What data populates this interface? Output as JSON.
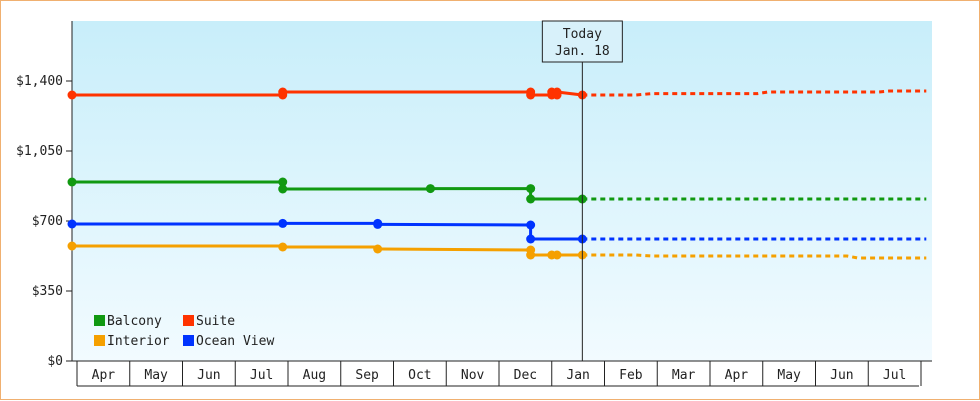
{
  "chart_data": {
    "type": "line",
    "x_axis": {
      "months": [
        "Apr",
        "May",
        "Jun",
        "Jul",
        "Aug",
        "Sep",
        "Oct",
        "Nov",
        "Dec",
        "Jan",
        "Feb",
        "Mar",
        "Apr",
        "May",
        "Jun",
        "Jul"
      ]
    },
    "y_axis": {
      "ylim": [
        0,
        1700
      ],
      "ticks": [
        0,
        350,
        700,
        1050,
        1400
      ],
      "tick_labels": [
        "$0",
        "$350",
        "$700",
        "$1,050",
        "$1,400"
      ]
    },
    "grid": false,
    "legend": {
      "placement": "bottom-left",
      "entries": [
        {
          "name": "Balcony",
          "color": "#119911"
        },
        {
          "name": "Suite",
          "color": "#ff3300"
        },
        {
          "name": "Interior",
          "color": "#f5a000"
        },
        {
          "name": "Ocean View",
          "color": "#0033ff"
        }
      ]
    },
    "today_marker": {
      "line1": "Today",
      "line2": "Jan. 18",
      "month_index": 9.58
    },
    "series": [
      {
        "name": "Suite",
        "color": "#ff3300",
        "history": [
          [
            0,
            1330
          ],
          [
            3.9,
            1330
          ],
          [
            3.9,
            1345
          ],
          [
            8.6,
            1345
          ],
          [
            8.6,
            1330
          ],
          [
            9.0,
            1330
          ],
          [
            9.0,
            1345
          ],
          [
            9.05,
            1330
          ],
          [
            9.1,
            1345
          ],
          [
            9.58,
            1330
          ]
        ],
        "forecast": [
          [
            9.58,
            1330
          ],
          [
            10.6,
            1330
          ],
          [
            10.9,
            1337
          ],
          [
            12.9,
            1337
          ],
          [
            13.1,
            1345
          ],
          [
            15.2,
            1345
          ],
          [
            15.4,
            1350
          ],
          [
            16.1,
            1350
          ]
        ]
      },
      {
        "name": "Balcony",
        "color": "#119911",
        "history": [
          [
            0,
            895
          ],
          [
            3.9,
            895
          ],
          [
            3.9,
            860
          ],
          [
            6.7,
            860
          ],
          [
            6.7,
            862
          ],
          [
            8.6,
            862
          ],
          [
            8.6,
            810
          ],
          [
            9.58,
            810
          ]
        ],
        "forecast": [
          [
            9.58,
            810
          ],
          [
            16.1,
            810
          ]
        ]
      },
      {
        "name": "Ocean View",
        "color": "#0033ff",
        "history": [
          [
            0,
            685
          ],
          [
            3.9,
            685
          ],
          [
            3.9,
            688
          ],
          [
            5.7,
            688
          ],
          [
            5.7,
            683
          ],
          [
            8.6,
            680
          ],
          [
            8.6,
            610
          ],
          [
            9.58,
            610
          ]
        ],
        "forecast": [
          [
            9.58,
            610
          ],
          [
            16.1,
            610
          ]
        ]
      },
      {
        "name": "Interior",
        "color": "#f5a000",
        "history": [
          [
            0,
            575
          ],
          [
            3.9,
            575
          ],
          [
            3.9,
            570
          ],
          [
            5.7,
            570
          ],
          [
            5.7,
            560
          ],
          [
            8.6,
            555
          ],
          [
            8.6,
            530
          ],
          [
            9.0,
            530
          ],
          [
            9.05,
            535
          ],
          [
            9.1,
            530
          ],
          [
            9.58,
            530
          ]
        ],
        "forecast": [
          [
            9.58,
            530
          ],
          [
            10.6,
            530
          ],
          [
            10.9,
            525
          ],
          [
            14.6,
            525
          ],
          [
            14.8,
            515
          ],
          [
            16.1,
            515
          ]
        ]
      }
    ],
    "markers": [
      {
        "series": "Suite",
        "points": [
          [
            0,
            1330
          ],
          [
            3.9,
            1330
          ],
          [
            3.9,
            1345
          ],
          [
            8.6,
            1345
          ],
          [
            8.6,
            1330
          ],
          [
            9.0,
            1330
          ],
          [
            9.0,
            1345
          ],
          [
            9.1,
            1345
          ],
          [
            9.1,
            1330
          ],
          [
            9.58,
            1330
          ]
        ]
      },
      {
        "series": "Balcony",
        "points": [
          [
            0,
            895
          ],
          [
            3.9,
            895
          ],
          [
            3.9,
            860
          ],
          [
            6.7,
            862
          ],
          [
            8.6,
            862
          ],
          [
            8.6,
            810
          ],
          [
            9.58,
            810
          ]
        ]
      },
      {
        "series": "Ocean View",
        "points": [
          [
            0,
            685
          ],
          [
            3.9,
            688
          ],
          [
            5.7,
            688
          ],
          [
            5.7,
            683
          ],
          [
            8.6,
            680
          ],
          [
            8.6,
            610
          ],
          [
            9.58,
            610
          ]
        ]
      },
      {
        "series": "Interior",
        "points": [
          [
            0,
            575
          ],
          [
            3.9,
            570
          ],
          [
            5.7,
            560
          ],
          [
            8.6,
            555
          ],
          [
            8.6,
            530
          ],
          [
            9.0,
            530
          ],
          [
            9.1,
            530
          ],
          [
            9.58,
            530
          ]
        ]
      }
    ]
  }
}
